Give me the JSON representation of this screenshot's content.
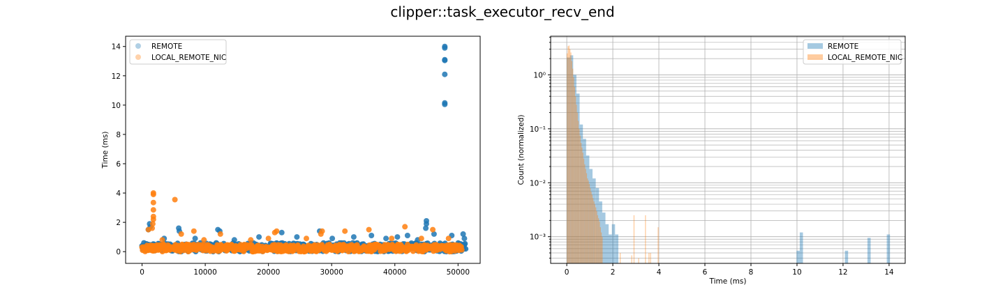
{
  "figure": {
    "title": "clipper::task_executor_recv_end"
  },
  "colors": {
    "remote": "#1f77b4",
    "local": "#ff7f0e",
    "grid": "#b0b0b0"
  },
  "chart_data": [
    {
      "type": "scatter",
      "xlabel": "",
      "ylabel": "Time (ms)",
      "xlim": [
        -2600,
        53500
      ],
      "ylim": [
        -0.8,
        14.7
      ],
      "xticks": [
        0,
        10000,
        20000,
        30000,
        40000,
        50000
      ],
      "yticks": [
        0,
        2,
        4,
        6,
        8,
        10,
        12,
        14
      ],
      "grid": false,
      "legend_position": "upper-left",
      "series": [
        {
          "name": "REMOTE",
          "color": "#1f77b4",
          "alpha": 0.35,
          "baseline_range": [
            0,
            51200
          ],
          "baseline_band": [
            0.0,
            0.6
          ],
          "outliers": [
            [
              47900,
              14.0
            ],
            [
              47900,
              13.9
            ],
            [
              47900,
              13.1
            ],
            [
              47900,
              13.05
            ],
            [
              47900,
              12.1
            ],
            [
              47900,
              10.15
            ],
            [
              47900,
              10.05
            ],
            [
              45000,
              2.1
            ],
            [
              45000,
              1.9
            ],
            [
              44900,
              1.6
            ],
            [
              1200,
              1.9
            ],
            [
              1300,
              1.7
            ],
            [
              1000,
              1.5
            ],
            [
              5800,
              1.6
            ],
            [
              5900,
              1.4
            ],
            [
              12000,
              1.5
            ],
            [
              12300,
              1.4
            ],
            [
              18500,
              1.0
            ],
            [
              22100,
              1.3
            ],
            [
              28100,
              1.4
            ],
            [
              33500,
              1.0
            ],
            [
              36300,
              1.1
            ],
            [
              40400,
              1.0
            ],
            [
              42000,
              1.1
            ],
            [
              46200,
              1.2
            ],
            [
              49000,
              1.1
            ],
            [
              50800,
              1.2
            ],
            [
              51000,
              0.9
            ],
            [
              3500,
              0.9
            ],
            [
              8400,
              0.9
            ],
            [
              14600,
              0.8
            ],
            [
              24500,
              1.0
            ],
            [
              30100,
              0.9
            ],
            [
              38600,
              0.9
            ],
            [
              43600,
              0.8
            ]
          ]
        },
        {
          "name": "LOCAL_REMOTE_NIC",
          "color": "#ff7f0e",
          "alpha": 0.35,
          "baseline_range": [
            0,
            50600
          ],
          "baseline_band": [
            0.0,
            0.5
          ],
          "outliers": [
            [
              1800,
              4.0
            ],
            [
              1800,
              3.9
            ],
            [
              1800,
              3.35
            ],
            [
              1800,
              2.85
            ],
            [
              1800,
              2.4
            ],
            [
              1800,
              2.2
            ],
            [
              1700,
              1.9
            ],
            [
              1600,
              1.6
            ],
            [
              1000,
              1.5
            ],
            [
              5200,
              3.55
            ],
            [
              6200,
              1.2
            ],
            [
              8200,
              1.4
            ],
            [
              12400,
              1.2
            ],
            [
              21300,
              1.4
            ],
            [
              21000,
              1.3
            ],
            [
              28500,
              1.4
            ],
            [
              28300,
              1.2
            ],
            [
              32100,
              1.4
            ],
            [
              35900,
              1.5
            ],
            [
              41600,
              1.7
            ],
            [
              46000,
              1.5
            ],
            [
              44200,
              0.9
            ],
            [
              20000,
              0.9
            ],
            [
              17200,
              0.8
            ],
            [
              26000,
              0.9
            ],
            [
              39500,
              0.9
            ],
            [
              3200,
              0.8
            ],
            [
              9800,
              0.8
            ],
            [
              48500,
              0.9
            ]
          ]
        }
      ]
    },
    {
      "type": "bar",
      "subtype": "histogram",
      "xlabel": "Time (ms)",
      "ylabel": "Count (normalized)",
      "yscale": "log",
      "xlim": [
        -0.7,
        14.7
      ],
      "ylim": [
        0.00032,
        5.2
      ],
      "xticks": [
        0,
        2,
        4,
        6,
        8,
        10,
        12,
        14
      ],
      "yticks": [
        0.001,
        0.01,
        0.1,
        1
      ],
      "ytick_labels": [
        "10⁻³",
        "10⁻²",
        "10⁻¹",
        "10⁰"
      ],
      "grid": true,
      "legend_position": "upper-right",
      "series": [
        {
          "name": "REMOTE",
          "color": "#1f77b4",
          "alpha": 0.4,
          "bin_width": 0.14,
          "bins": [
            [
              0.0,
              2.1
            ],
            [
              0.14,
              2.3
            ],
            [
              0.28,
              1.0
            ],
            [
              0.42,
              0.45
            ],
            [
              0.56,
              0.12
            ],
            [
              0.7,
              0.065
            ],
            [
              0.84,
              0.032
            ],
            [
              0.98,
              0.018
            ],
            [
              1.12,
              0.012
            ],
            [
              1.26,
              0.008
            ],
            [
              1.4,
              0.0045
            ],
            [
              1.54,
              0.0028
            ],
            [
              1.68,
              0.0017
            ],
            [
              1.82,
              0.0011
            ],
            [
              1.96,
              0.0017
            ],
            [
              2.1,
              0.0011
            ],
            [
              9.98,
              0.00055
            ],
            [
              10.12,
              0.0012
            ],
            [
              12.08,
              0.00055
            ],
            [
              13.06,
              0.00095
            ],
            [
              13.9,
              0.0011
            ]
          ]
        },
        {
          "name": "LOCAL_REMOTE_NIC",
          "color": "#ff7f0e",
          "alpha": 0.4,
          "bin_width": 0.04,
          "bins": [
            [
              0.0,
              2.5
            ],
            [
              0.04,
              3.4
            ],
            [
              0.08,
              3.5
            ],
            [
              0.12,
              3.0
            ],
            [
              0.16,
              2.6
            ],
            [
              0.2,
              1.8
            ],
            [
              0.24,
              1.3
            ],
            [
              0.28,
              0.9
            ],
            [
              0.32,
              0.6
            ],
            [
              0.36,
              0.4
            ],
            [
              0.4,
              0.28
            ],
            [
              0.44,
              0.2
            ],
            [
              0.48,
              0.14
            ],
            [
              0.52,
              0.1
            ],
            [
              0.56,
              0.075
            ],
            [
              0.6,
              0.055
            ],
            [
              0.64,
              0.045
            ],
            [
              0.68,
              0.036
            ],
            [
              0.72,
              0.028
            ],
            [
              0.76,
              0.022
            ],
            [
              0.8,
              0.018
            ],
            [
              0.84,
              0.015
            ],
            [
              0.88,
              0.012
            ],
            [
              0.92,
              0.011
            ],
            [
              0.96,
              0.0095
            ],
            [
              1.0,
              0.008
            ],
            [
              1.04,
              0.0068
            ],
            [
              1.08,
              0.006
            ],
            [
              1.12,
              0.0052
            ],
            [
              1.16,
              0.0045
            ],
            [
              1.2,
              0.004
            ],
            [
              1.24,
              0.0035
            ],
            [
              1.28,
              0.003
            ],
            [
              1.32,
              0.0025
            ],
            [
              1.36,
              0.0022
            ],
            [
              1.4,
              0.0019
            ],
            [
              1.44,
              0.0015
            ],
            [
              1.48,
              0.0012
            ],
            [
              1.52,
              0.001
            ],
            [
              2.3,
              0.0005
            ],
            [
              2.8,
              0.00045
            ],
            [
              2.9,
              0.0025
            ],
            [
              3.1,
              0.0004
            ],
            [
              3.4,
              0.0025
            ],
            [
              3.55,
              0.0005
            ],
            [
              3.62,
              0.0005
            ],
            [
              3.95,
              0.0015
            ]
          ]
        }
      ]
    }
  ]
}
